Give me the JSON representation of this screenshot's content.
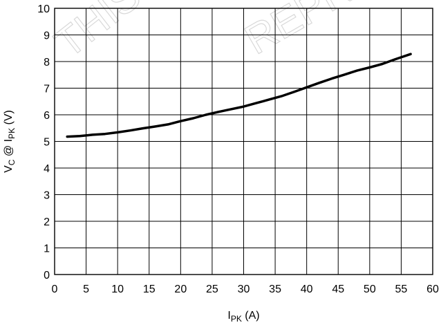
{
  "chart_data": {
    "type": "line",
    "title": "",
    "xlabel": "I",
    "xlabel_sub": "PK",
    "xlabel_unit": " (A)",
    "ylabel": "V",
    "ylabel_sub1": "C",
    "ylabel_mid": " @ I",
    "ylabel_sub2": "PK",
    "ylabel_unit": " (V)",
    "xlim": [
      0,
      60
    ],
    "ylim": [
      0,
      10
    ],
    "xticks": [
      0,
      5,
      10,
      15,
      20,
      25,
      30,
      35,
      40,
      45,
      50,
      55,
      60
    ],
    "yticks": [
      0,
      1,
      2,
      3,
      4,
      5,
      6,
      7,
      8,
      9,
      10
    ],
    "grid": true,
    "series": [
      {
        "color": "#000000",
        "x": [
          2,
          4,
          6,
          8,
          10,
          12,
          14,
          16,
          18,
          20,
          22,
          24,
          26,
          28,
          30,
          32,
          34,
          36,
          38,
          40,
          42,
          44,
          46,
          48,
          50,
          52,
          54,
          56.5
        ],
        "y": [
          5.18,
          5.2,
          5.25,
          5.28,
          5.34,
          5.41,
          5.49,
          5.56,
          5.64,
          5.76,
          5.87,
          6.0,
          6.11,
          6.21,
          6.31,
          6.44,
          6.57,
          6.7,
          6.86,
          7.03,
          7.2,
          7.36,
          7.51,
          7.66,
          7.78,
          7.91,
          8.08,
          8.28
        ]
      }
    ]
  },
  "watermark": [
    "THIS DE",
    "REPRE"
  ]
}
